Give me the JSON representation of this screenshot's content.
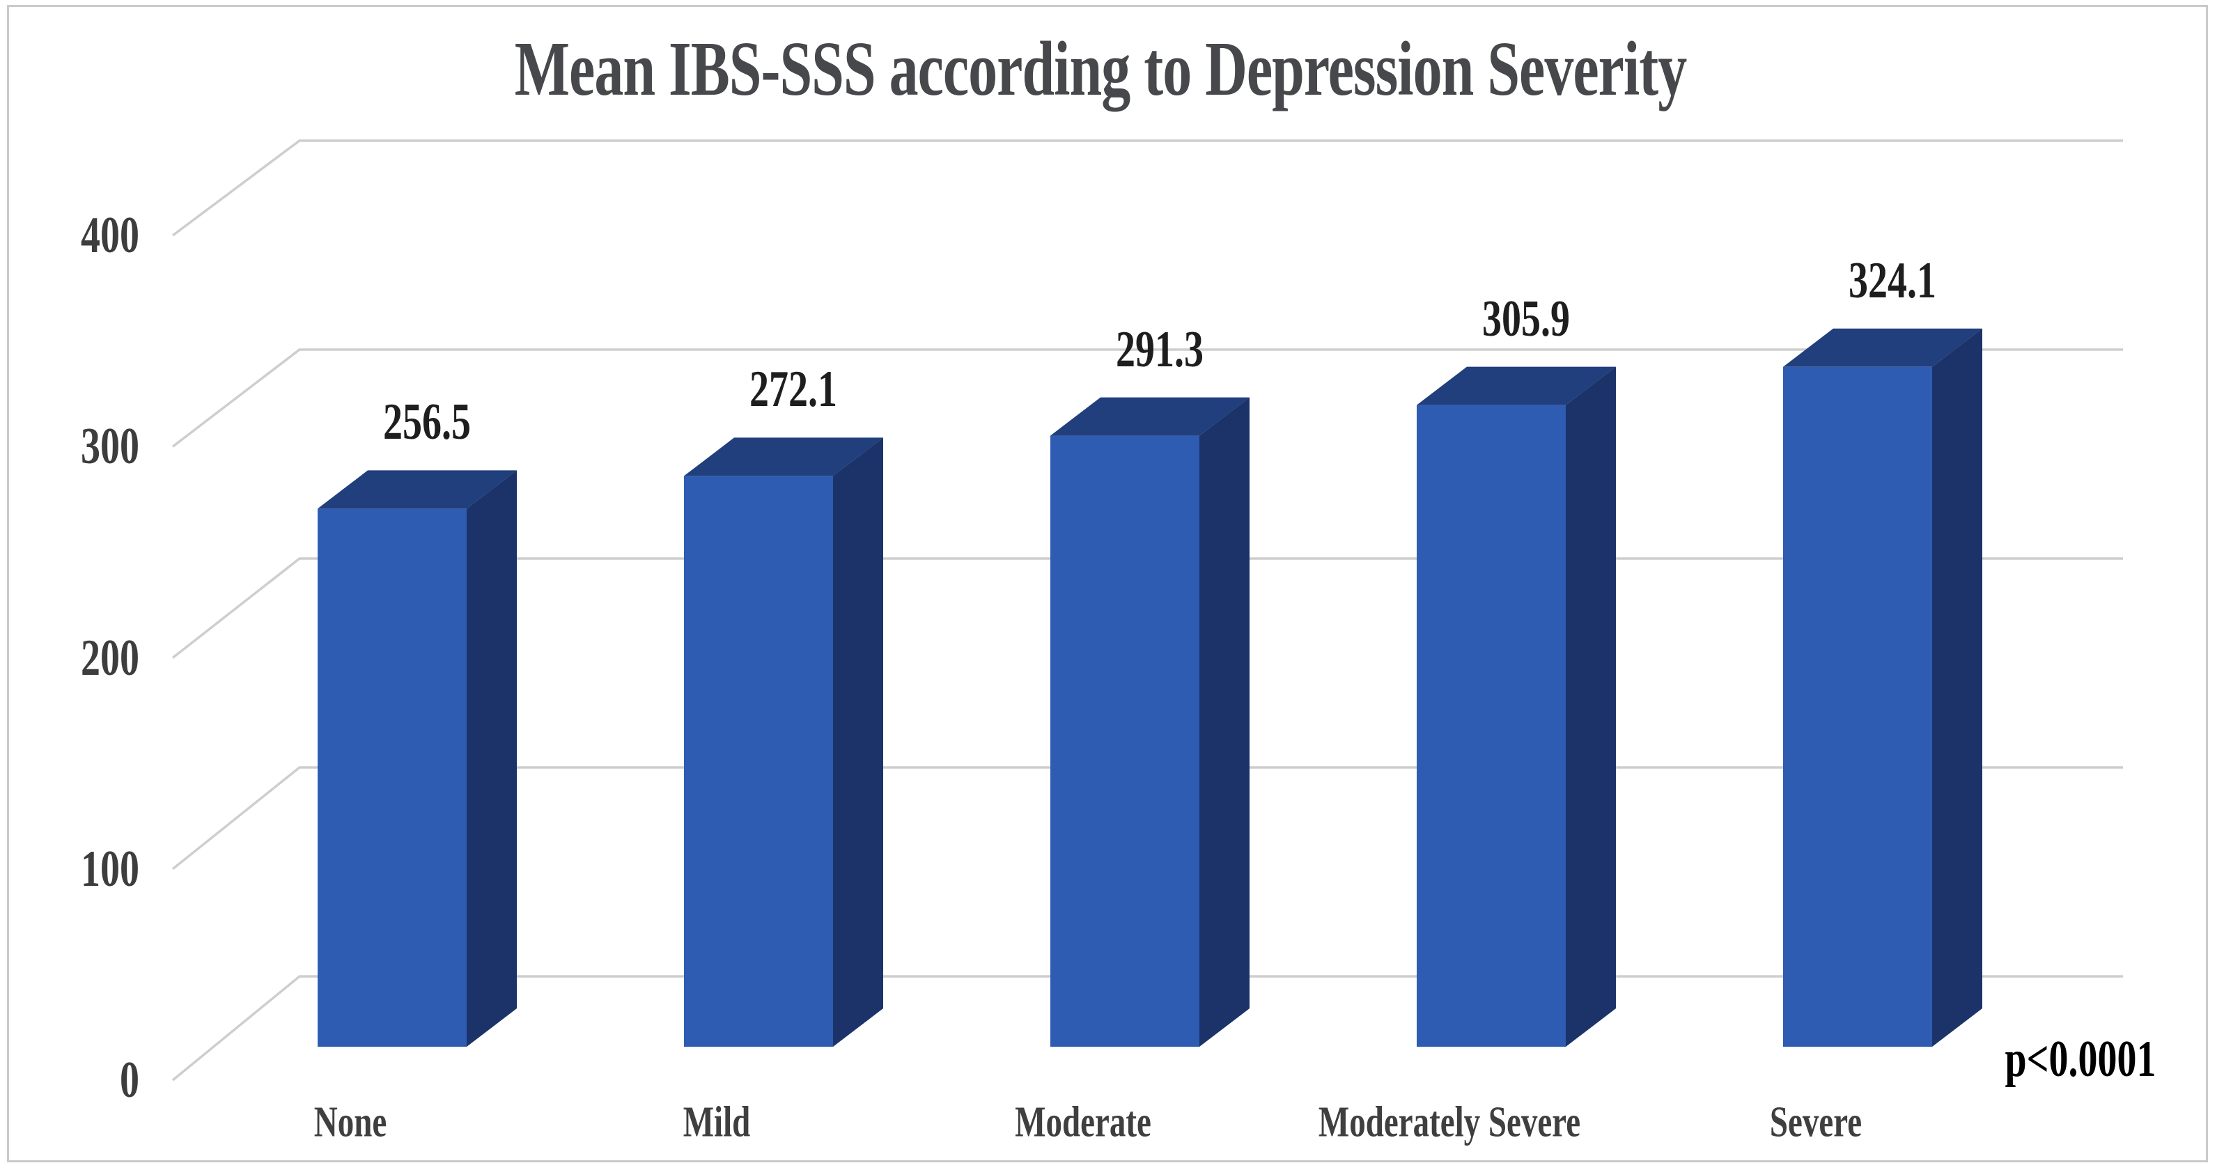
{
  "chart_data": {
    "type": "bar",
    "style": "3d-column",
    "title": "Mean IBS-SSS according to Depression Severity",
    "categories": [
      "None",
      "Mild",
      "Moderate",
      "Moderately Severe",
      "Severe"
    ],
    "values": [
      256.5,
      272.1,
      291.3,
      305.9,
      324.1
    ],
    "value_labels": [
      "256.5",
      "272.1",
      "291.3",
      "305.9",
      "324.1"
    ],
    "series_name": "Mean IBS-SSS",
    "xlabel": "",
    "ylabel": "",
    "ylim": [
      0,
      400
    ],
    "yticks": [
      0,
      100,
      200,
      300,
      400
    ],
    "grid": true,
    "legend": false,
    "annotation": "p<0.0001",
    "colors": {
      "bar_front": "#2f5cb3",
      "bar_top": "#213e7d",
      "bar_side": "#1b3369",
      "gridline": "#cfcdcd",
      "border": "#c9cacb",
      "title_text": "#47484b",
      "tick_text": "#3d3d3d",
      "category_text": "#3f3f3f",
      "value_text": "#1e1e1e",
      "annotation_text": "#000000",
      "background": "#ffffff"
    }
  }
}
